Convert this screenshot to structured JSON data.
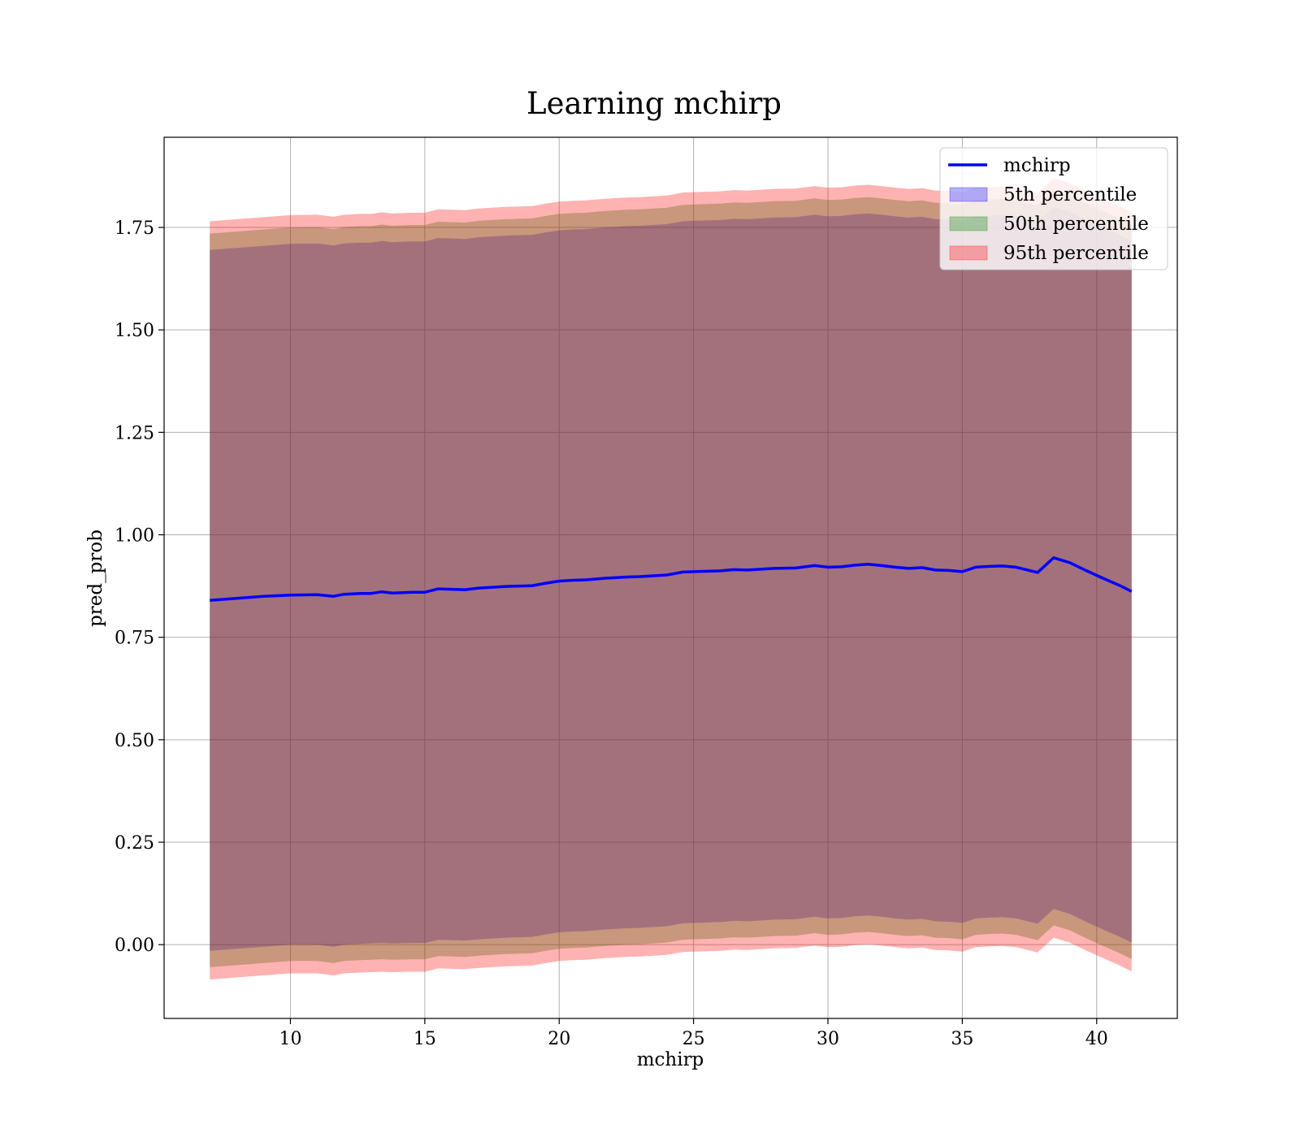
{
  "chart_data": {
    "type": "line",
    "title": "Learning mchirp",
    "xlabel": "mchirp",
    "ylabel": "pred_prob",
    "xlim": [
      5.3,
      43.0
    ],
    "ylim": [
      -0.18,
      1.97
    ],
    "xticks": [
      10,
      15,
      20,
      25,
      30,
      35,
      40
    ],
    "xtick_labels": [
      "10",
      "15",
      "20",
      "25",
      "30",
      "35",
      "40"
    ],
    "yticks": [
      0.0,
      0.25,
      0.5,
      0.75,
      1.0,
      1.25,
      1.5,
      1.75
    ],
    "ytick_labels": [
      "0.00",
      "0.25",
      "0.50",
      "0.75",
      "1.00",
      "1.25",
      "1.50",
      "1.75"
    ],
    "grid": true,
    "legend_position": "top-right",
    "x": [
      7.0,
      8.0,
      9.0,
      10.0,
      11.0,
      11.6,
      12.0,
      12.6,
      13.0,
      13.4,
      13.8,
      14.5,
      15.0,
      15.5,
      16.0,
      16.5,
      17.0,
      17.5,
      18.0,
      19.0,
      19.5,
      20.0,
      20.5,
      21.0,
      21.7,
      22.5,
      23.0,
      24.0,
      24.6,
      25.0,
      25.5,
      26.0,
      26.5,
      27.0,
      28.0,
      28.8,
      29.5,
      30.0,
      30.5,
      31.0,
      31.5,
      32.0,
      32.5,
      33.0,
      33.5,
      34.0,
      34.5,
      35.0,
      35.5,
      36.0,
      36.5,
      37.0,
      37.8,
      38.4,
      39.0,
      39.6,
      40.2,
      40.8,
      41.3
    ],
    "series": [
      {
        "name": "mchirp",
        "kind": "line",
        "color": "#0000ff",
        "values": [
          0.84,
          0.845,
          0.85,
          0.853,
          0.854,
          0.85,
          0.855,
          0.857,
          0.857,
          0.861,
          0.858,
          0.86,
          0.86,
          0.868,
          0.867,
          0.866,
          0.87,
          0.872,
          0.874,
          0.876,
          0.882,
          0.887,
          0.889,
          0.89,
          0.894,
          0.897,
          0.898,
          0.902,
          0.909,
          0.91,
          0.911,
          0.912,
          0.915,
          0.914,
          0.918,
          0.919,
          0.925,
          0.921,
          0.922,
          0.926,
          0.928,
          0.925,
          0.921,
          0.918,
          0.92,
          0.914,
          0.913,
          0.91,
          0.921,
          0.923,
          0.924,
          0.921,
          0.908,
          0.944,
          0.932,
          0.913,
          0.895,
          0.878,
          0.862
        ]
      },
      {
        "name": "5th percentile",
        "kind": "band",
        "color": "#0000ff",
        "lower": [
          -0.015,
          -0.01,
          -0.005,
          0.0,
          0.0,
          -0.005,
          0.0,
          0.002,
          0.003,
          0.004,
          0.003,
          0.004,
          0.004,
          0.012,
          0.011,
          0.01,
          0.013,
          0.015,
          0.017,
          0.019,
          0.025,
          0.03,
          0.032,
          0.033,
          0.037,
          0.04,
          0.041,
          0.045,
          0.052,
          0.053,
          0.054,
          0.055,
          0.058,
          0.057,
          0.061,
          0.062,
          0.068,
          0.064,
          0.065,
          0.069,
          0.071,
          0.068,
          0.064,
          0.061,
          0.063,
          0.057,
          0.056,
          0.053,
          0.064,
          0.066,
          0.067,
          0.064,
          0.051,
          0.087,
          0.075,
          0.056,
          0.038,
          0.021,
          0.005
        ],
        "upper": [
          1.695,
          1.7,
          1.705,
          1.71,
          1.711,
          1.706,
          1.711,
          1.713,
          1.713,
          1.717,
          1.714,
          1.716,
          1.716,
          1.724,
          1.723,
          1.722,
          1.726,
          1.728,
          1.73,
          1.732,
          1.738,
          1.743,
          1.745,
          1.746,
          1.75,
          1.753,
          1.754,
          1.758,
          1.765,
          1.766,
          1.767,
          1.768,
          1.771,
          1.77,
          1.774,
          1.775,
          1.781,
          1.777,
          1.778,
          1.782,
          1.784,
          1.781,
          1.777,
          1.774,
          1.776,
          1.77,
          1.769,
          1.766,
          1.777,
          1.779,
          1.78,
          1.777,
          1.764,
          1.8,
          1.788,
          1.769,
          1.751,
          1.734,
          1.718
        ]
      },
      {
        "name": "50th percentile",
        "kind": "band",
        "color": "#008000",
        "lower": [
          -0.055,
          -0.05,
          -0.045,
          -0.04,
          -0.04,
          -0.045,
          -0.04,
          -0.038,
          -0.037,
          -0.036,
          -0.037,
          -0.036,
          -0.036,
          -0.028,
          -0.029,
          -0.03,
          -0.027,
          -0.025,
          -0.023,
          -0.021,
          -0.015,
          -0.01,
          -0.008,
          -0.007,
          -0.003,
          0.0,
          0.001,
          0.005,
          0.012,
          0.013,
          0.014,
          0.015,
          0.018,
          0.017,
          0.021,
          0.022,
          0.028,
          0.024,
          0.025,
          0.029,
          0.031,
          0.028,
          0.024,
          0.021,
          0.023,
          0.017,
          0.016,
          0.013,
          0.024,
          0.026,
          0.027,
          0.024,
          0.011,
          0.047,
          0.035,
          0.016,
          -0.002,
          -0.019,
          -0.035
        ],
        "upper": [
          1.735,
          1.74,
          1.745,
          1.75,
          1.751,
          1.746,
          1.751,
          1.753,
          1.753,
          1.757,
          1.754,
          1.756,
          1.756,
          1.764,
          1.763,
          1.762,
          1.766,
          1.768,
          1.77,
          1.772,
          1.778,
          1.783,
          1.785,
          1.786,
          1.79,
          1.793,
          1.794,
          1.798,
          1.805,
          1.806,
          1.807,
          1.808,
          1.811,
          1.81,
          1.814,
          1.815,
          1.821,
          1.817,
          1.818,
          1.822,
          1.824,
          1.821,
          1.817,
          1.814,
          1.816,
          1.81,
          1.809,
          1.806,
          1.817,
          1.819,
          1.82,
          1.817,
          1.804,
          1.84,
          1.828,
          1.809,
          1.791,
          1.774,
          1.758
        ]
      },
      {
        "name": "95th percentile",
        "kind": "band",
        "color": "#ff0000",
        "lower": [
          -0.085,
          -0.08,
          -0.075,
          -0.07,
          -0.07,
          -0.075,
          -0.07,
          -0.068,
          -0.067,
          -0.066,
          -0.067,
          -0.066,
          -0.066,
          -0.058,
          -0.059,
          -0.06,
          -0.057,
          -0.055,
          -0.053,
          -0.051,
          -0.045,
          -0.04,
          -0.038,
          -0.037,
          -0.033,
          -0.03,
          -0.029,
          -0.025,
          -0.018,
          -0.017,
          -0.016,
          -0.015,
          -0.012,
          -0.013,
          -0.009,
          -0.008,
          -0.002,
          -0.006,
          -0.005,
          -0.001,
          0.001,
          -0.002,
          -0.006,
          -0.009,
          -0.007,
          -0.013,
          -0.014,
          -0.017,
          -0.006,
          -0.004,
          -0.003,
          -0.006,
          -0.019,
          0.017,
          0.005,
          -0.014,
          -0.032,
          -0.049,
          -0.065
        ],
        "upper": [
          1.765,
          1.77,
          1.775,
          1.78,
          1.781,
          1.776,
          1.781,
          1.783,
          1.783,
          1.787,
          1.784,
          1.786,
          1.786,
          1.794,
          1.793,
          1.792,
          1.796,
          1.798,
          1.8,
          1.802,
          1.808,
          1.813,
          1.815,
          1.816,
          1.82,
          1.823,
          1.824,
          1.828,
          1.835,
          1.836,
          1.837,
          1.838,
          1.841,
          1.84,
          1.844,
          1.845,
          1.851,
          1.847,
          1.848,
          1.852,
          1.854,
          1.851,
          1.847,
          1.844,
          1.846,
          1.84,
          1.839,
          1.836,
          1.847,
          1.849,
          1.85,
          1.847,
          1.834,
          1.87,
          1.858,
          1.839,
          1.821,
          1.804,
          1.788
        ]
      }
    ]
  }
}
